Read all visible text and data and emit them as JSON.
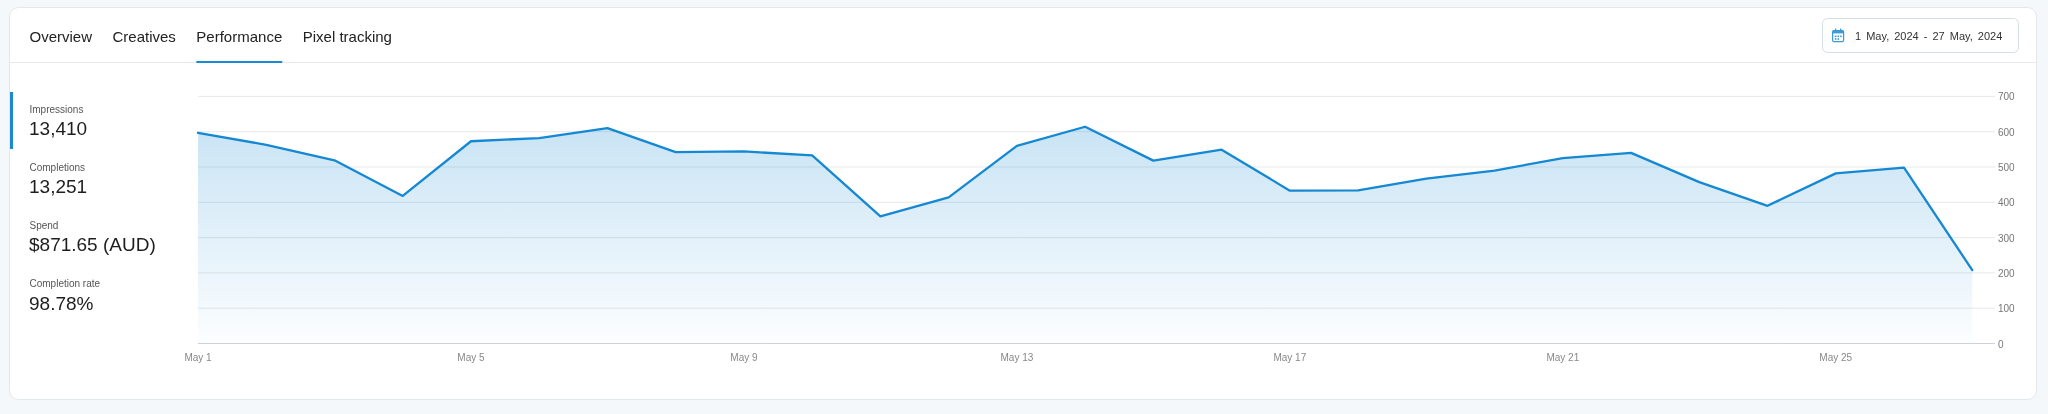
{
  "chart_data": [
    {
      "type": "other",
      "annotations": [
        "Overview",
        "Creatives",
        "Performance",
        "Pixel tracking",
        "1 May, 2024 - 27 May, 2024",
        "Impressions",
        "13,410",
        "Completions",
        "13,251",
        "Spend",
        "$871.65 (AUD)",
        "Completion rate",
        "98.78%"
      ]
    },
    {
      "type": "area",
      "x": [
        "2024-05-01",
        "2024-05-02",
        "2024-05-03",
        "2024-05-04",
        "2024-05-05",
        "2024-05-06",
        "2024-05-07",
        "2024-05-08",
        "2024-05-09",
        "2024-05-10",
        "2024-05-11",
        "2024-05-12",
        "2024-05-13",
        "2024-05-14",
        "2024-05-15",
        "2024-05-16",
        "2024-05-17",
        "2024-05-18",
        "2024-05-19",
        "2024-05-20",
        "2024-05-21",
        "2024-05-22",
        "2024-05-23",
        "2024-05-24",
        "2024-05-25",
        "2024-05-26",
        "2024-05-27"
      ],
      "series": [
        {
          "color": "#1488d2",
          "values": [
            597,
            563,
            519,
            418,
            573,
            582,
            610,
            542,
            544,
            533,
            360,
            414,
            560,
            614,
            518,
            549,
            433,
            434,
            467,
            490,
            525,
            540,
            457,
            390,
            482,
            498,
            208
          ]
        }
      ],
      "xlim": [
        "2024-05-01",
        "2024-05-27T08:00"
      ],
      "xticks": [
        {
          "value": "2024-05-01",
          "label": "May 1"
        },
        {
          "value": "2024-05-05",
          "label": "May 5"
        },
        {
          "value": "2024-05-09",
          "label": "May 9"
        },
        {
          "value": "2024-05-13",
          "label": "May 13"
        },
        {
          "value": "2024-05-17",
          "label": "May 17"
        },
        {
          "value": "2024-05-21",
          "label": "May 21"
        },
        {
          "value": "2024-05-25",
          "label": "May 25"
        }
      ],
      "ylim": [
        0,
        700
      ],
      "yticks": [
        0,
        100,
        200,
        300,
        400,
        500,
        600,
        700
      ],
      "grid": "y"
    }
  ]
}
